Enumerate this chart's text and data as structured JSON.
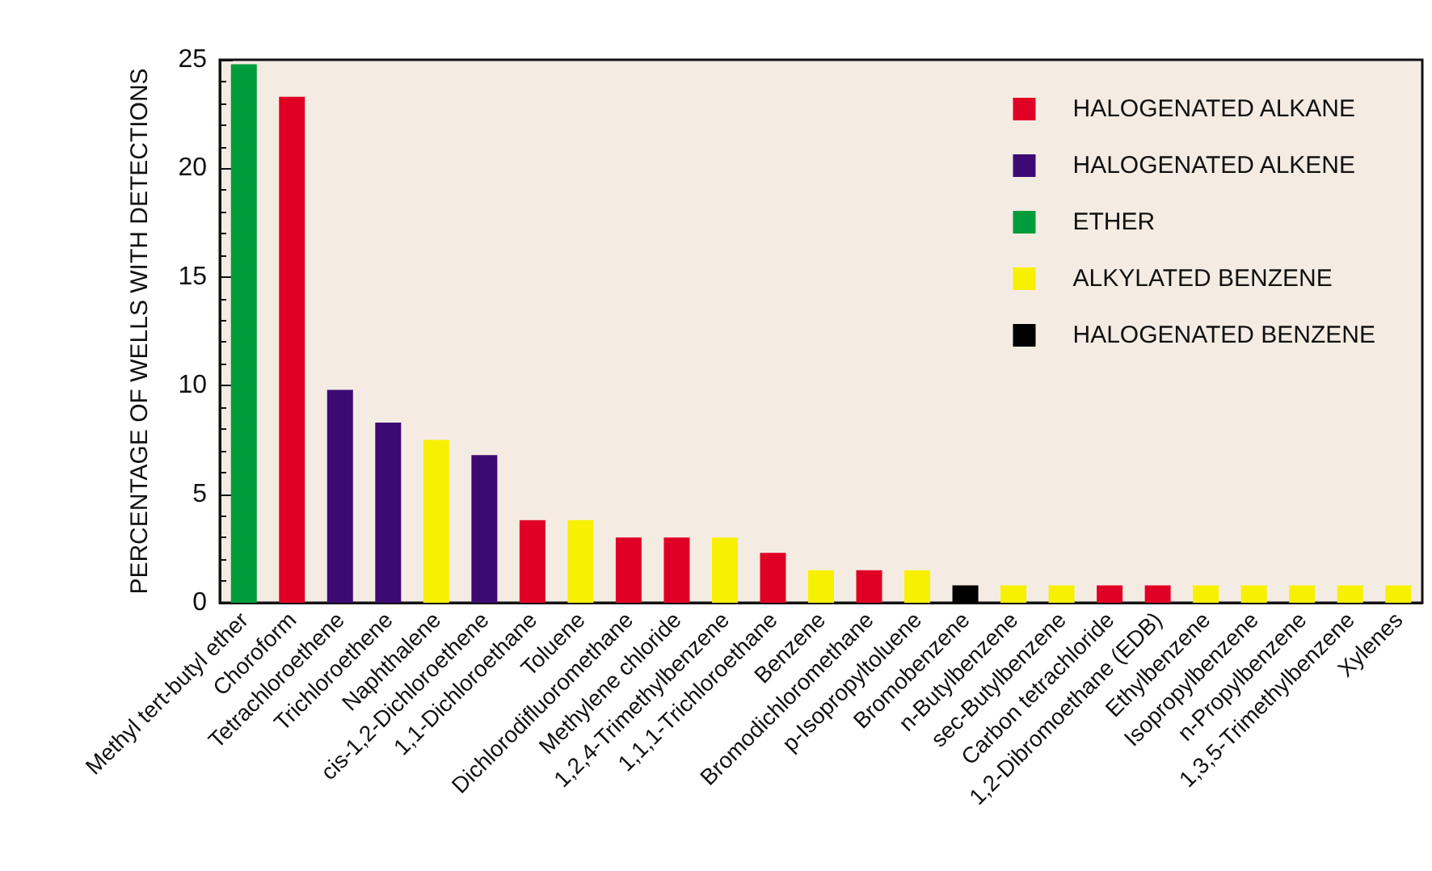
{
  "chart_data": {
    "type": "bar",
    "ylabel": "PERCENTAGE OF WELLS WITH DETECTIONS",
    "categories": [
      "Methyl tert-butyl ether",
      "Choroform",
      "Tetrachloroethene",
      "Trichloroethene",
      "Naphthalene",
      "cis-1,2-Dichloroethene",
      "1,1-Dichloroethane",
      "Toluene",
      "Dichlorodifluoromethane",
      "Methylene chloride",
      "1,2,4-Trimethylbenzene",
      "1,1,1-Trichloroethane",
      "Benzene",
      "Bromodichloromethane",
      "p-Isopropyltoluene",
      "Bromobenzene",
      "n-Butylbenzene",
      "sec-Butylbenzene",
      "Carbon tetrachloride",
      "1,2-Dibromoethane (EDB)",
      "Ethylbenzene",
      "Isopropylbenzene",
      "n-Propylbenzene",
      "1,3,5-Trimethylbenzene",
      "Xylenes"
    ],
    "series": [
      {
        "name": "HALOGENATED ALKANE",
        "color": "#e10025",
        "values": [
          null,
          23.3,
          null,
          null,
          null,
          null,
          3.8,
          null,
          3.0,
          3.0,
          null,
          2.3,
          null,
          1.5,
          null,
          null,
          null,
          null,
          0.8,
          0.8,
          null,
          null,
          null,
          null,
          null
        ]
      },
      {
        "name": "HALOGENATED ALKENE",
        "color": "#3d0a73",
        "values": [
          null,
          null,
          9.8,
          8.3,
          null,
          6.8,
          null,
          null,
          null,
          null,
          null,
          null,
          null,
          null,
          null,
          null,
          null,
          null,
          null,
          null,
          null,
          null,
          null,
          null,
          null
        ]
      },
      {
        "name": "ETHER",
        "color": "#009c3b",
        "values": [
          24.8,
          null,
          null,
          null,
          null,
          null,
          null,
          null,
          null,
          null,
          null,
          null,
          null,
          null,
          null,
          null,
          null,
          null,
          null,
          null,
          null,
          null,
          null,
          null,
          null
        ]
      },
      {
        "name": "ALKYLATED BENZENE",
        "color": "#f7f000",
        "values": [
          null,
          null,
          null,
          null,
          7.5,
          null,
          null,
          3.8,
          null,
          null,
          3.0,
          null,
          1.5,
          null,
          1.5,
          null,
          0.8,
          0.8,
          null,
          null,
          0.8,
          0.8,
          0.8,
          0.8,
          0.8
        ]
      },
      {
        "name": "HALOGENATED BENZENE",
        "color": "#000000",
        "values": [
          null,
          null,
          null,
          null,
          null,
          null,
          null,
          null,
          null,
          null,
          null,
          null,
          null,
          null,
          null,
          0.8,
          null,
          null,
          null,
          null,
          null,
          null,
          null,
          null,
          null
        ]
      }
    ],
    "ylim": [
      0,
      25
    ],
    "yticks": [
      0,
      5,
      10,
      15,
      20,
      25
    ],
    "grid": false,
    "legend": "top right"
  }
}
